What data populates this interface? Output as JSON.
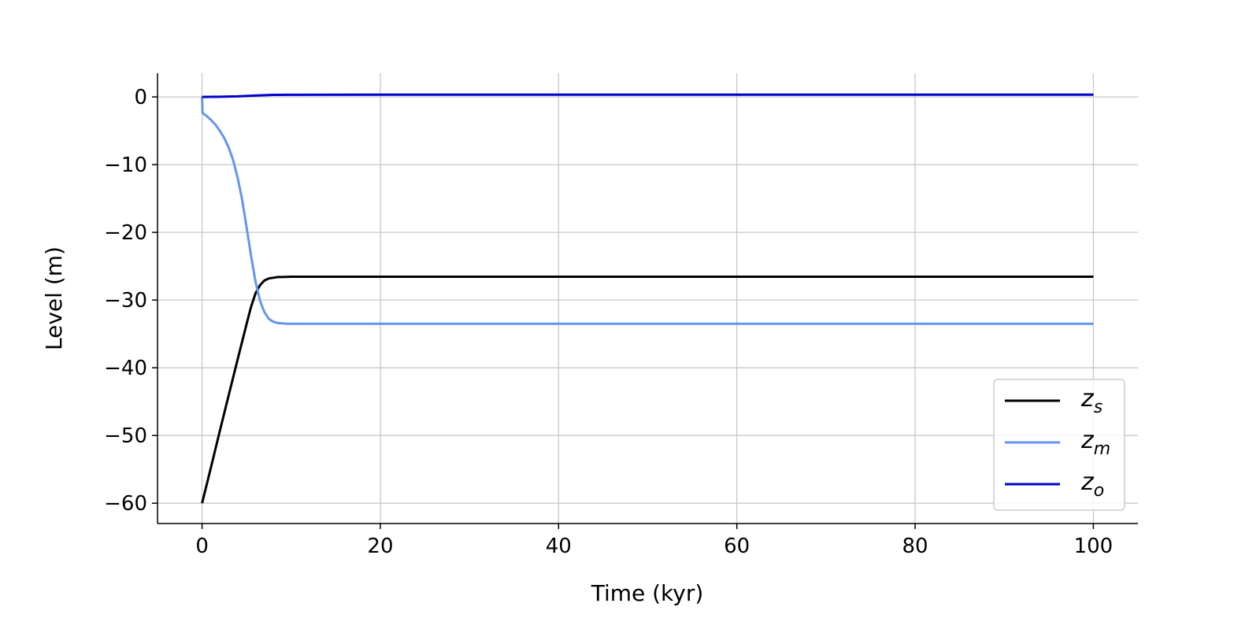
{
  "chart_data": {
    "type": "line",
    "title": "",
    "xlabel": "Time (kyr)",
    "ylabel": "Level (m)",
    "xlim": [
      -5,
      105
    ],
    "ylim": [
      -63,
      3.5
    ],
    "xticks": [
      0,
      20,
      40,
      60,
      80,
      100
    ],
    "yticks": [
      0,
      -10,
      -20,
      -30,
      -40,
      -50,
      -60
    ],
    "xtick_labels": [
      "0",
      "20",
      "40",
      "60",
      "80",
      "100"
    ],
    "ytick_labels": [
      "0",
      "−10",
      "−20",
      "−30",
      "−40",
      "−50",
      "−60"
    ],
    "grid": true,
    "legend_position": "bottom-right",
    "series": [
      {
        "name": "z_s",
        "label_main": "z",
        "label_sub": "s",
        "color": "#000000",
        "x": [
          0,
          1,
          2,
          3,
          4,
          5,
          5.5,
          6,
          6.5,
          7,
          7.5,
          8,
          8.5,
          9,
          10,
          12,
          20,
          40,
          60,
          80,
          100
        ],
        "y": [
          -60,
          -54.7,
          -49.3,
          -44,
          -38.7,
          -33.5,
          -31,
          -29,
          -27.8,
          -27.1,
          -26.8,
          -26.7,
          -26.6,
          -26.6,
          -26.55,
          -26.55,
          -26.55,
          -26.55,
          -26.55,
          -26.55,
          -26.55
        ]
      },
      {
        "name": "z_m",
        "label_main": "z",
        "label_sub": "m",
        "color": "#6495ED",
        "x": [
          0,
          0.05,
          0.5,
          1,
          1.5,
          2,
          2.5,
          3,
          3.5,
          4,
          4.5,
          5,
          5.5,
          6,
          6.5,
          7,
          7.5,
          8,
          8.5,
          9,
          9.5,
          10,
          12,
          20,
          40,
          60,
          80,
          100
        ],
        "y": [
          0,
          -2.4,
          -2.8,
          -3.4,
          -4.1,
          -5.0,
          -6.1,
          -7.5,
          -9.4,
          -12,
          -15.2,
          -19.3,
          -23.5,
          -27.3,
          -30.1,
          -31.8,
          -32.8,
          -33.2,
          -33.4,
          -33.45,
          -33.5,
          -33.5,
          -33.5,
          -33.5,
          -33.5,
          -33.5,
          -33.5,
          -33.5
        ]
      },
      {
        "name": "z_o",
        "label_main": "z",
        "label_sub": "o",
        "color": "#0000CD",
        "x": [
          0,
          2,
          4,
          6,
          8,
          10,
          20,
          40,
          60,
          80,
          100
        ],
        "y": [
          0,
          0.02,
          0.08,
          0.2,
          0.3,
          0.32,
          0.33,
          0.33,
          0.33,
          0.33,
          0.33
        ]
      }
    ]
  }
}
